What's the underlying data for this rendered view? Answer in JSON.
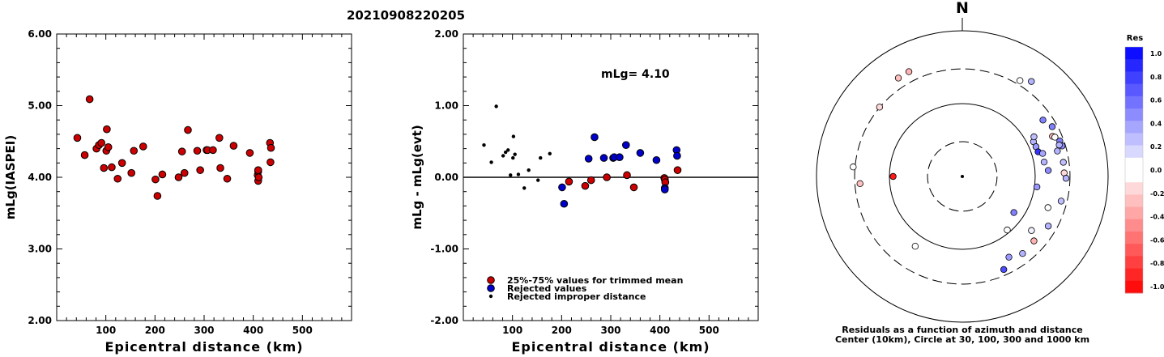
{
  "page_title": "20210908220205",
  "chart_data": [
    {
      "type": "scatter",
      "xlabel": "Epicentral distance (km)",
      "ylabel": "mLg(IASPEI)",
      "xlim": [
        0,
        600
      ],
      "ylim": [
        2.0,
        6.0
      ],
      "xticks": [
        "100",
        "200",
        "300",
        "400",
        "500"
      ],
      "yticks": [
        "2.00",
        "3.00",
        "4.00",
        "5.00",
        "6.00"
      ],
      "series": [
        {
          "marker_color": "#cc0000",
          "points": [
            [
              42,
              4.55
            ],
            [
              57,
              4.31
            ],
            [
              67,
              5.09
            ],
            [
              81,
              4.4
            ],
            [
              86,
              4.45
            ],
            [
              91,
              4.48
            ],
            [
              96,
              4.13
            ],
            [
              101,
              4.37
            ],
            [
              102,
              4.67
            ],
            [
              105,
              4.42
            ],
            [
              112,
              4.14
            ],
            [
              124,
              3.98
            ],
            [
              133,
              4.2
            ],
            [
              152,
              4.06
            ],
            [
              157,
              4.37
            ],
            [
              176,
              4.43
            ],
            [
              201,
              3.97
            ],
            [
              205,
              3.74
            ],
            [
              215,
              4.04
            ],
            [
              248,
              4.0
            ],
            [
              255,
              4.36
            ],
            [
              260,
              4.06
            ],
            [
              267,
              4.66
            ],
            [
              286,
              4.37
            ],
            [
              292,
              4.1
            ],
            [
              305,
              4.38
            ],
            [
              307,
              4.38
            ],
            [
              318,
              4.38
            ],
            [
              331,
              4.55
            ],
            [
              333,
              4.13
            ],
            [
              347,
              3.98
            ],
            [
              360,
              4.44
            ],
            [
              393,
              4.34
            ],
            [
              409,
              4.03
            ],
            [
              410,
              4.08
            ],
            [
              410,
              4.1
            ],
            [
              410,
              3.95
            ],
            [
              411,
              4.0
            ],
            [
              434,
              4.48
            ],
            [
              435,
              4.21
            ],
            [
              436,
              4.41
            ]
          ]
        }
      ]
    },
    {
      "type": "scatter",
      "xlabel": "Epicentral distance (km)",
      "ylabel": "mLg - mLg(evt)",
      "xlim": [
        0,
        600
      ],
      "ylim": [
        -2.0,
        2.0
      ],
      "xticks": [
        "100",
        "200",
        "300",
        "400",
        "500"
      ],
      "yticks": [
        "-2.00",
        "-1.00",
        "0.00",
        "1.00",
        "2.00"
      ],
      "annotation": "mLg= 4.10",
      "legend_position": "bottom-left",
      "series": [
        {
          "name": "25%-75% values for trimmed mean",
          "marker_color": "#cc0000",
          "points": [
            [
              215,
              -0.06
            ],
            [
              248,
              -0.12
            ],
            [
              260,
              -0.04
            ],
            [
              292,
              0.0
            ],
            [
              333,
              0.03
            ],
            [
              347,
              -0.14
            ],
            [
              409,
              -0.01
            ],
            [
              410,
              -0.03
            ],
            [
              411,
              -0.07
            ],
            [
              436,
              0.1
            ]
          ]
        },
        {
          "name": "Rejected values",
          "marker_color": "#0000cc",
          "points": [
            [
              201,
              -0.14
            ],
            [
              205,
              -0.37
            ],
            [
              255,
              0.26
            ],
            [
              267,
              0.56
            ],
            [
              286,
              0.27
            ],
            [
              305,
              0.27
            ],
            [
              307,
              0.28
            ],
            [
              318,
              0.28
            ],
            [
              331,
              0.45
            ],
            [
              360,
              0.34
            ],
            [
              393,
              0.24
            ],
            [
              410,
              -0.15
            ],
            [
              410,
              -0.17
            ],
            [
              434,
              0.38
            ],
            [
              435,
              0.3
            ]
          ]
        },
        {
          "name": "Rejected improper distance",
          "marker_color": "#000000",
          "points": [
            [
              42,
              0.45
            ],
            [
              57,
              0.21
            ],
            [
              67,
              0.99
            ],
            [
              81,
              0.3
            ],
            [
              86,
              0.35
            ],
            [
              91,
              0.38
            ],
            [
              96,
              0.03
            ],
            [
              101,
              0.27
            ],
            [
              102,
              0.57
            ],
            [
              105,
              0.32
            ],
            [
              112,
              0.04
            ],
            [
              124,
              -0.15
            ],
            [
              133,
              0.1
            ],
            [
              152,
              -0.04
            ],
            [
              157,
              0.27
            ],
            [
              176,
              0.33
            ]
          ]
        }
      ]
    },
    {
      "type": "scatter",
      "subtype": "polar",
      "north_label": "N",
      "caption_line1": "Residuals as a function of azimuth and distance",
      "caption_line2": "Center (10km), Circle at 30, 100, 300 and 1000 km",
      "rings_km": [
        30,
        100,
        300,
        1000
      ],
      "colorbar": {
        "title": "Res",
        "ticks": [
          "1.0",
          "0.8",
          "0.6",
          "0.4",
          "0.2",
          "0.0",
          "-0.2",
          "-0.4",
          "-0.6",
          "-0.8",
          "-1.0"
        ],
        "max_color": "#0000ff",
        "min_color": "#ff0000"
      },
      "points": [
        {
          "azimuth": 270,
          "distance_km": 89,
          "residual": -0.9
        },
        {
          "azimuth": 327,
          "distance_km": 408,
          "residual": -0.25
        },
        {
          "azimuth": 333,
          "distance_km": 411,
          "residual": -0.3
        },
        {
          "azimuth": 310,
          "distance_km": 303,
          "residual": -0.15
        },
        {
          "azimuth": 275,
          "distance_km": 318,
          "residual": 0.0
        },
        {
          "azimuth": 266,
          "distance_km": 255,
          "residual": -0.25
        },
        {
          "azimuth": 31,
          "distance_km": 343,
          "residual": 0.0
        },
        {
          "azimuth": 36,
          "distance_km": 409,
          "residual": 0.3
        },
        {
          "azimuth": 64,
          "distance_km": 122,
          "residual": 0.3
        },
        {
          "azimuth": 68,
          "distance_km": 123,
          "residual": 0.4
        },
        {
          "azimuth": 72,
          "distance_km": 124,
          "residual": 0.8
        },
        {
          "azimuth": 61,
          "distance_km": 133,
          "residual": 0.25
        },
        {
          "azimuth": 74,
          "distance_km": 140,
          "residual": 0.35
        },
        {
          "azimuth": 80,
          "distance_km": 138,
          "residual": 0.3
        },
        {
          "azimuth": 86,
          "distance_km": 152,
          "residual": 0.45
        },
        {
          "azimuth": 55,
          "distance_km": 224,
          "residual": 0.5
        },
        {
          "azimuth": 61,
          "distance_km": 257,
          "residual": 0.5
        },
        {
          "azimuth": 66,
          "distance_km": 226,
          "residual": -0.3
        },
        {
          "azimuth": 67,
          "distance_km": 240,
          "residual": 0.0
        },
        {
          "azimuth": 70,
          "distance_km": 265,
          "residual": 0.5
        },
        {
          "azimuth": 73,
          "distance_km": 270,
          "residual": 0.45
        },
        {
          "azimuth": 72,
          "distance_km": 250,
          "residual": 0.3
        },
        {
          "azimuth": 75,
          "distance_km": 224,
          "residual": 0.3
        },
        {
          "azimuth": 82,
          "distance_km": 251,
          "residual": 0.25
        },
        {
          "azimuth": 88,
          "distance_km": 250,
          "residual": -0.15
        },
        {
          "azimuth": 91,
          "distance_km": 265,
          "residual": 0.3
        },
        {
          "azimuth": 98,
          "distance_km": 108,
          "residual": 0.4
        },
        {
          "azimuth": 104,
          "distance_km": 250,
          "residual": 0.25
        },
        {
          "azimuth": 110,
          "distance_km": 178,
          "residual": 0.0
        },
        {
          "azimuth": 120,
          "distance_km": 230,
          "residual": 0.3
        },
        {
          "azimuth": 125,
          "distance_km": 73,
          "residual": 0.5
        },
        {
          "azimuth": 128,
          "distance_km": 160,
          "residual": 0.05
        },
        {
          "azimuth": 132,
          "distance_km": 210,
          "residual": -0.3
        },
        {
          "azimuth": 140,
          "distance_km": 91,
          "residual": 0.0
        },
        {
          "azimuth": 142,
          "distance_km": 220,
          "residual": 0.3
        },
        {
          "azimuth": 150,
          "distance_km": 190,
          "residual": 0.4
        },
        {
          "azimuth": 156,
          "distance_km": 250,
          "residual": 0.7
        },
        {
          "azimuth": 214,
          "distance_km": 143,
          "residual": 0.0
        }
      ]
    }
  ]
}
